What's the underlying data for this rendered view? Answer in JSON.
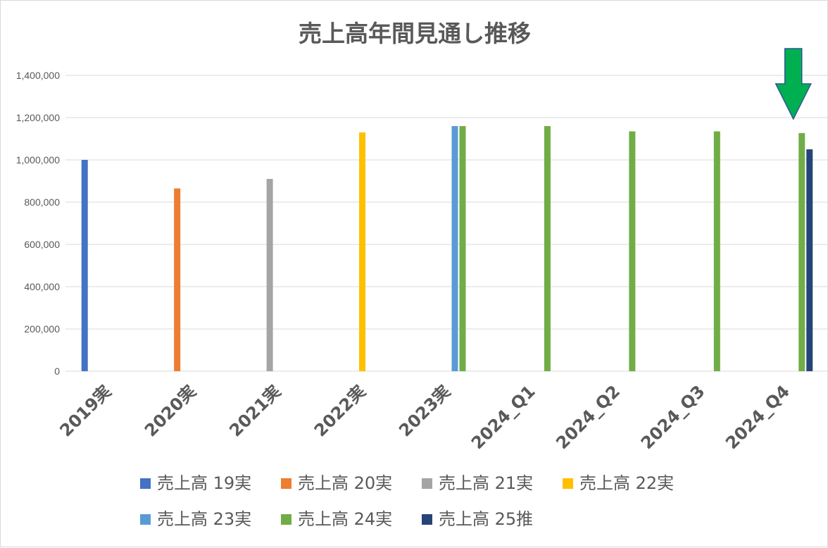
{
  "chart_data": {
    "type": "bar",
    "title": "売上高年間見通し推移",
    "xlabel": "",
    "ylabel": "",
    "ylim": [
      0,
      1400000
    ],
    "ytick_step": 200000,
    "grid": true,
    "legend_position": "bottom",
    "categories": [
      "2019実",
      "2020実",
      "2021実",
      "2022実",
      "2023実",
      "2024_Q1",
      "2024_Q2",
      "2024_Q3",
      "2024_Q4"
    ],
    "series": [
      {
        "name": "売上高 19実",
        "color": "#4472C4",
        "values": [
          1000000,
          null,
          null,
          null,
          null,
          null,
          null,
          null,
          null
        ]
      },
      {
        "name": "売上高 20実",
        "color": "#ED7D31",
        "values": [
          null,
          865000,
          null,
          null,
          null,
          null,
          null,
          null,
          null
        ]
      },
      {
        "name": "売上高 21実",
        "color": "#A5A5A5",
        "values": [
          null,
          null,
          910000,
          null,
          null,
          null,
          null,
          null,
          null
        ]
      },
      {
        "name": "売上高 22実",
        "color": "#FFC000",
        "values": [
          null,
          null,
          null,
          1130000,
          null,
          null,
          null,
          null,
          null
        ]
      },
      {
        "name": "売上高 23実",
        "color": "#5B9BD5",
        "values": [
          null,
          null,
          null,
          null,
          1160000,
          null,
          null,
          null,
          null
        ]
      },
      {
        "name": "売上高 24実",
        "color": "#70AD47",
        "values": [
          null,
          null,
          null,
          null,
          1160000,
          1160000,
          1135000,
          1135000,
          1127000
        ]
      },
      {
        "name": "売上高 25推",
        "color": "#264478",
        "values": [
          null,
          null,
          null,
          null,
          null,
          null,
          null,
          null,
          1050000
        ]
      }
    ],
    "annotation": {
      "type": "arrow-down",
      "category": "2024_Q4",
      "color": "#00B050"
    }
  }
}
